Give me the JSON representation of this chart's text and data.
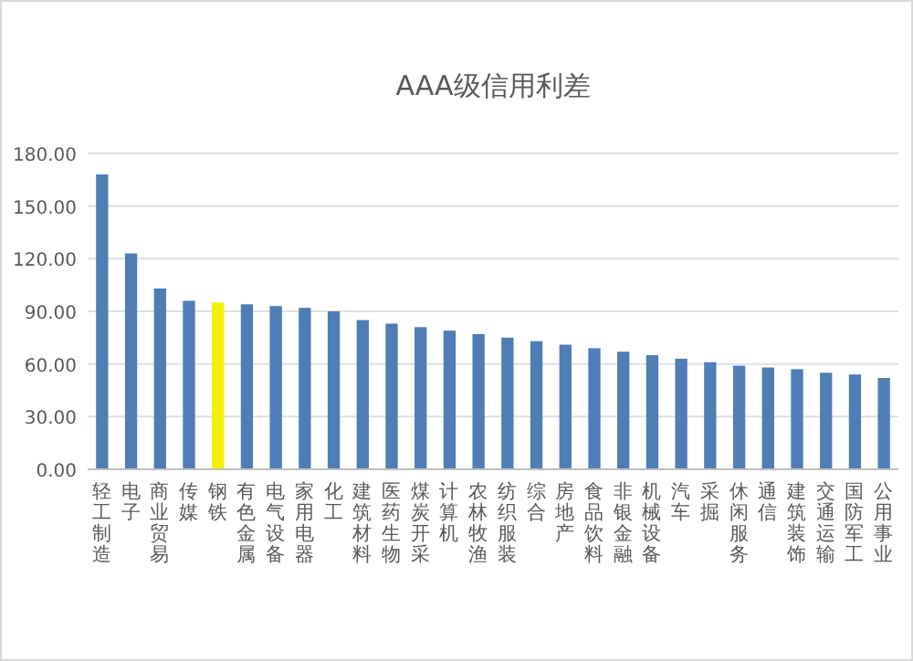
{
  "chart_data": {
    "type": "bar",
    "title": "AAA级信用利差",
    "categories": [
      "轻工制造",
      "电子",
      "商业贸易",
      "传媒",
      "钢铁",
      "有色金属",
      "电气设备",
      "家用电器",
      "化工",
      "建筑材料",
      "医药生物",
      "煤炭开采",
      "计算机",
      "农林牧渔",
      "纺织服装",
      "综合",
      "房地产",
      "食品饮料",
      "非银金融",
      "机械设备",
      "汽车",
      "采掘",
      "休闲服务",
      "通信",
      "建筑装饰",
      "交通运输",
      "国防军工",
      "公用事业"
    ],
    "values": [
      168,
      123,
      103,
      96,
      95,
      94,
      93,
      92,
      90,
      85,
      83,
      81,
      79,
      77,
      75,
      73,
      71,
      69,
      67,
      65,
      63,
      61,
      59,
      58,
      57,
      55,
      54,
      52
    ],
    "colors": [
      "#4f7db6",
      "#4f7db6",
      "#4f7db6",
      "#4f7db6",
      "#f2f200",
      "#4f7db6",
      "#4f7db6",
      "#4f7db6",
      "#4f7db6",
      "#4f7db6",
      "#4f7db6",
      "#4f7db6",
      "#4f7db6",
      "#4f7db6",
      "#4f7db6",
      "#4f7db6",
      "#4f7db6",
      "#4f7db6",
      "#4f7db6",
      "#4f7db6",
      "#4f7db6",
      "#4f7db6",
      "#4f7db6",
      "#4f7db6",
      "#4f7db6",
      "#4f7db6",
      "#4f7db6",
      "#4f7db6"
    ],
    "ylim": [
      0,
      180
    ],
    "yticks": [
      {
        "value": 0,
        "label": "0.00"
      },
      {
        "value": 30,
        "label": "30.00"
      },
      {
        "value": 60,
        "label": "60.00"
      },
      {
        "value": 90,
        "label": "90.00"
      },
      {
        "value": 120,
        "label": "120.00"
      },
      {
        "value": 150,
        "label": "150.00"
      },
      {
        "value": 180,
        "label": "180.00"
      }
    ],
    "grid": "y"
  }
}
